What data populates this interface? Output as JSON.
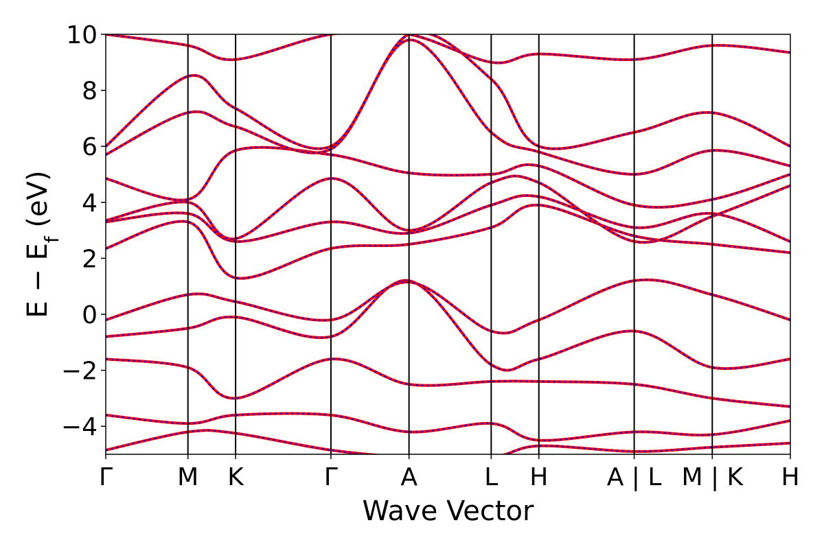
{
  "chart_data": {
    "type": "line",
    "xlabel": "Wave Vector",
    "ylabel": "E − Eₓ (eV)",
    "ylabel_main": "E − E",
    "ylabel_sub": "f",
    "ylabel_unit": "(eV)",
    "ylim": [
      -5,
      10
    ],
    "y_ticks": [
      -4,
      -2,
      0,
      2,
      4,
      6,
      8,
      10
    ],
    "y_tick_labels": [
      "−4",
      "−2",
      "0",
      "2",
      "4",
      "6",
      "8",
      "10"
    ],
    "kpath_ticks": [
      {
        "k": 0.0,
        "label": "Γ"
      },
      {
        "k": 1.0,
        "label": "M"
      },
      {
        "k": 1.58,
        "label": "K"
      },
      {
        "k": 2.74,
        "label": "Γ"
      },
      {
        "k": 3.69,
        "label": "A"
      },
      {
        "k": 4.69,
        "label": "L"
      },
      {
        "k": 5.27,
        "label": "H"
      },
      {
        "k": 6.43,
        "label": "A | L"
      },
      {
        "k": 7.38,
        "label": "M | K"
      },
      {
        "k": 8.33,
        "label": "H"
      }
    ],
    "x_range": [
      0,
      8.33
    ],
    "grid": false,
    "series": [
      {
        "color": "#ff0000",
        "style": "solid",
        "bands": [
          {
            "x": [
              0,
              1,
              1.58,
              2.74,
              3.69,
              4.69,
              5.27,
              6.43,
              7.38,
              8.33
            ],
            "y": [
              -4.85,
              -4.2,
              -4.25,
              -4.85,
              -5.1,
              -5.1,
              -4.7,
              -4.9,
              -4.75,
              -4.6
            ]
          },
          {
            "x": [
              0,
              1,
              1.58,
              2.74,
              3.69,
              4.69,
              5.27,
              6.43,
              7.38,
              8.33
            ],
            "y": [
              -3.6,
              -3.9,
              -3.6,
              -3.6,
              -4.2,
              -3.9,
              -4.5,
              -4.2,
              -4.3,
              -3.8
            ]
          },
          {
            "x": [
              0,
              1,
              1.58,
              2.74,
              3.69,
              4.69,
              5.27,
              6.43,
              7.38,
              8.33
            ],
            "y": [
              -1.6,
              -1.9,
              -3.0,
              -1.6,
              -2.5,
              -2.4,
              -2.4,
              -2.5,
              -3.0,
              -3.3
            ]
          },
          {
            "x": [
              0,
              1,
              1.58,
              2.74,
              3.69,
              4.69,
              5.27,
              6.43,
              7.38,
              8.33
            ],
            "y": [
              -0.8,
              -0.5,
              -0.1,
              -0.8,
              1.2,
              -1.8,
              -1.6,
              -0.6,
              -1.9,
              -1.6
            ]
          },
          {
            "x": [
              0,
              1,
              1.58,
              2.74,
              3.69,
              4.69,
              5.27,
              6.43,
              7.38,
              8.33
            ],
            "y": [
              -0.2,
              0.7,
              0.45,
              -0.2,
              1.15,
              -0.6,
              -0.2,
              1.2,
              0.7,
              -0.2
            ]
          },
          {
            "x": [
              0,
              1,
              1.58,
              2.74,
              3.69,
              4.69,
              5.27,
              6.43,
              7.38,
              8.33
            ],
            "y": [
              2.35,
              3.3,
              1.3,
              2.35,
              2.5,
              3.1,
              3.9,
              2.8,
              2.5,
              2.2
            ]
          },
          {
            "x": [
              0,
              1,
              1.58,
              2.74,
              3.69,
              4.69,
              5.27,
              6.43,
              7.38,
              8.33
            ],
            "y": [
              3.3,
              3.6,
              2.6,
              3.3,
              2.9,
              3.9,
              4.2,
              3.1,
              3.6,
              2.6
            ]
          },
          {
            "x": [
              0,
              1,
              1.58,
              2.74,
              3.69,
              4.69,
              5.27,
              6.43,
              7.38,
              8.33
            ],
            "y": [
              3.35,
              4.0,
              2.7,
              4.85,
              3.0,
              4.7,
              4.7,
              2.6,
              3.5,
              4.6
            ]
          },
          {
            "x": [
              0,
              1,
              1.58,
              2.74,
              3.69,
              4.69,
              5.27,
              6.43,
              7.38,
              8.33
            ],
            "y": [
              4.85,
              4.1,
              5.85,
              5.7,
              5.05,
              5.0,
              5.3,
              3.9,
              4.1,
              5.0
            ]
          },
          {
            "x": [
              0,
              1,
              1.58,
              2.74,
              3.69,
              4.69,
              5.27,
              6.43,
              7.38,
              8.33
            ],
            "y": [
              5.7,
              7.2,
              6.7,
              5.9,
              9.8,
              6.5,
              5.8,
              5.0,
              5.85,
              5.3
            ]
          },
          {
            "x": [
              0,
              1,
              1.58,
              2.74,
              3.69,
              4.69,
              5.27,
              6.43,
              7.38,
              8.33
            ],
            "y": [
              6.0,
              8.5,
              7.35,
              6.0,
              10.0,
              8.4,
              6.0,
              6.5,
              7.2,
              6.0
            ]
          },
          {
            "x": [
              0,
              1,
              1.58,
              2.74,
              3.69,
              4.69,
              5.27,
              6.43,
              7.38,
              8.33
            ],
            "y": [
              10.0,
              9.6,
              9.1,
              10.0,
              10.0,
              9.0,
              9.3,
              9.1,
              9.6,
              9.35
            ]
          }
        ]
      },
      {
        "color": "#0000ff",
        "style": "dashed",
        "overlay_of": 0
      }
    ]
  }
}
